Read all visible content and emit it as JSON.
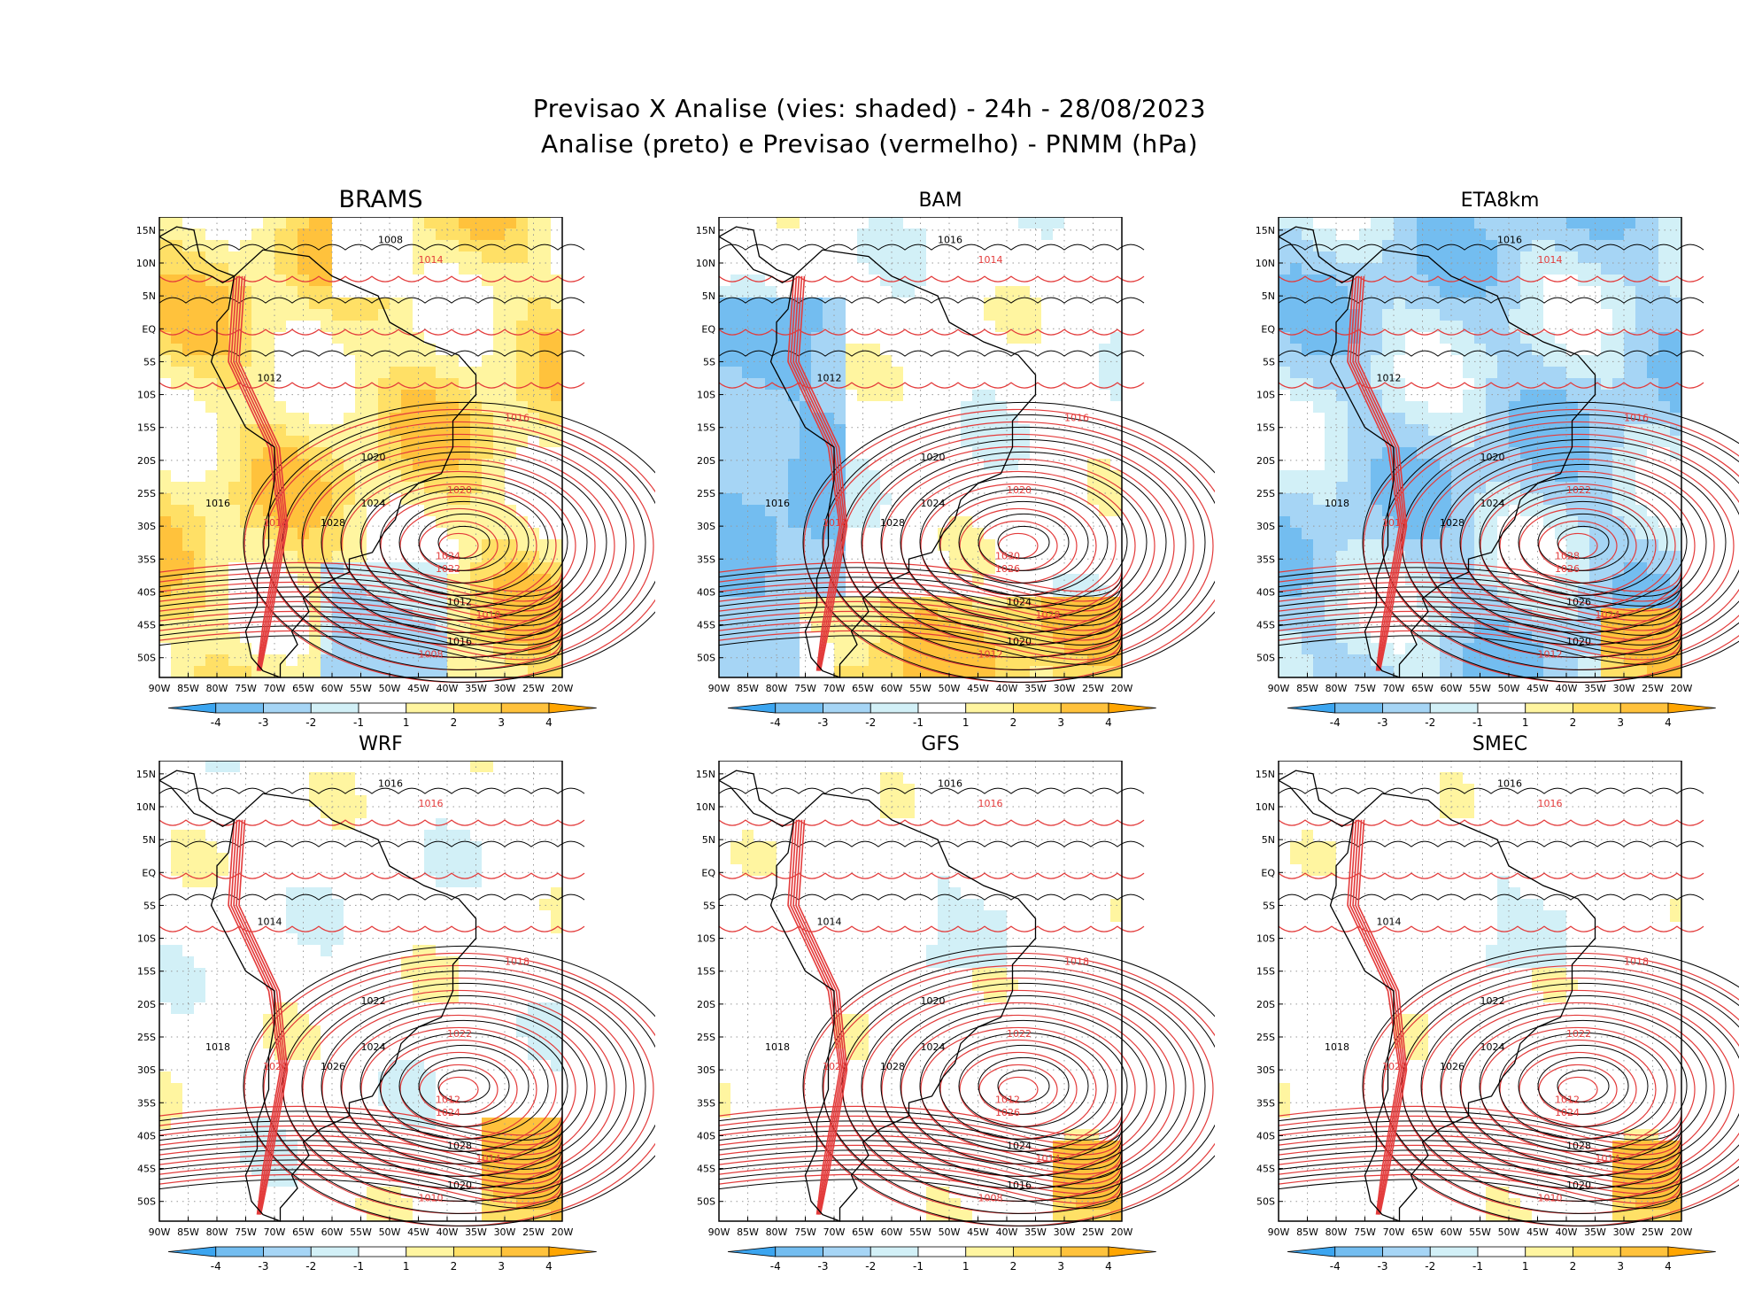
{
  "header": {
    "title_line1": "Previsao X Analise (vies: shaded) - 24h - 28/08/2023",
    "title_line2": "Analise (preto) e Previsao (vermelho) - PNMM (hPa)"
  },
  "axes": {
    "lat_labels": [
      "15N",
      "10N",
      "5N",
      "EQ",
      "5S",
      "10S",
      "15S",
      "20S",
      "25S",
      "30S",
      "35S",
      "40S",
      "45S",
      "50S"
    ],
    "lon_labels": [
      "90W",
      "85W",
      "80W",
      "75W",
      "70W",
      "65W",
      "60W",
      "55W",
      "50W",
      "45W",
      "40W",
      "35W",
      "30W",
      "25W",
      "20W"
    ]
  },
  "colorbar": {
    "ticks": [
      "-4",
      "-3",
      "-2",
      "-1",
      "1",
      "2",
      "3",
      "4"
    ],
    "colors": [
      "#3ba5f0",
      "#73bdf0",
      "#a6d5f5",
      "#d2f0f7",
      "#ffffff",
      "#fff5a0",
      "#ffe066",
      "#ffc23c",
      "#ffa500"
    ]
  },
  "style": {
    "analysis_color": "#000000",
    "forecast_color": "#e33b3b"
  },
  "panels": [
    {
      "name": "BRAMS",
      "bias": "warm",
      "labels_black": [
        "1008",
        "1012",
        "1016",
        "1020",
        "1024",
        "1028",
        "1012",
        "1016"
      ],
      "labels_red": [
        "1014",
        "1016",
        "1018",
        "1020",
        "1022",
        "1024",
        "1010",
        "1008"
      ]
    },
    {
      "name": "BAM",
      "bias": "mixed",
      "labels_black": [
        "1016",
        "1012",
        "1016",
        "1020",
        "1024",
        "1028",
        "1024",
        "1020"
      ],
      "labels_red": [
        "1014",
        "1016",
        "1018",
        "1020",
        "1026",
        "1030",
        "1028",
        "1012"
      ]
    },
    {
      "name": "ETA8km",
      "bias": "cold",
      "labels_black": [
        "1016",
        "1012",
        "1018",
        "1020",
        "1024",
        "1028",
        "1026",
        "1020"
      ],
      "labels_red": [
        "1014",
        "1016",
        "1014",
        "1022",
        "1026",
        "1028",
        "1024",
        "1012"
      ]
    },
    {
      "name": "WRF",
      "bias": "mixed_light",
      "labels_black": [
        "1016",
        "1014",
        "1018",
        "1022",
        "1024",
        "1026",
        "1028",
        "1020"
      ],
      "labels_red": [
        "1016",
        "1018",
        "1020",
        "1022",
        "1024",
        "1012",
        "1014",
        "1010"
      ]
    },
    {
      "name": "GFS",
      "bias": "light",
      "labels_black": [
        "1016",
        "1014",
        "1018",
        "1020",
        "1024",
        "1028",
        "1024",
        "1016"
      ],
      "labels_red": [
        "1016",
        "1018",
        "1020",
        "1022",
        "1026",
        "1012",
        "1014",
        "1008"
      ]
    },
    {
      "name": "SMEC",
      "bias": "light",
      "labels_black": [
        "1016",
        "1014",
        "1018",
        "1022",
        "1024",
        "1026",
        "1028",
        "1020"
      ],
      "labels_red": [
        "1016",
        "1018",
        "1020",
        "1022",
        "1024",
        "1012",
        "1014",
        "1010"
      ]
    }
  ]
}
